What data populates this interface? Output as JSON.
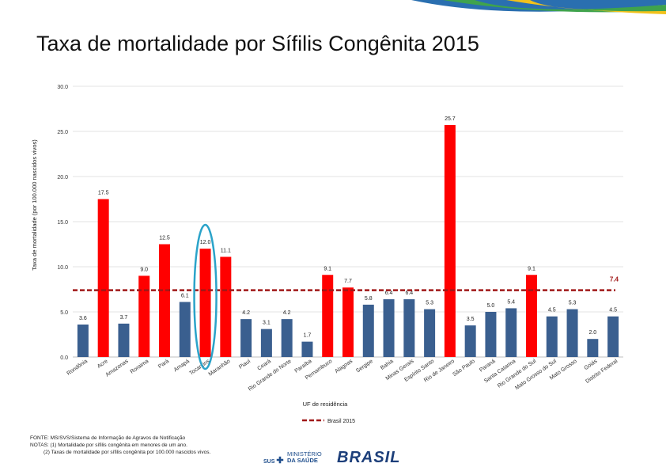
{
  "title": "Taxa de mortalidade por Sífilis Congênita 2015",
  "chart_data": {
    "type": "bar",
    "title": "Taxa de mortalidade por Sífilis Congênita 2015",
    "ylabel": "Taxa de mortalidade (por 100.000 nascidos vivos)",
    "xlabel": "UF de residência",
    "ylim": [
      0,
      30
    ],
    "yticks": [
      "0.0",
      "5.0",
      "10.0",
      "15.0",
      "20.0",
      "25.0",
      "30.0"
    ],
    "categories": [
      "Rondônia",
      "Acre",
      "Amazonas",
      "Roraima",
      "Pará",
      "Amapá",
      "Tocantins",
      "Maranhão",
      "Piauí",
      "Ceará",
      "Rio Grande do Norte",
      "Paraíba",
      "Pernambuco",
      "Alagoas",
      "Sergipe",
      "Bahia",
      "Minas Gerais",
      "Espírito Santo",
      "Rio de Janeiro",
      "São Paulo",
      "Paraná",
      "Santa Catarina",
      "Rio Grande do Sul",
      "Mato Grosso do Sul",
      "Mato Grosso",
      "Goiás",
      "Distrito Federal"
    ],
    "values": [
      3.6,
      17.5,
      3.7,
      9.0,
      12.5,
      6.1,
      12.0,
      11.1,
      4.2,
      3.1,
      4.2,
      1.7,
      9.1,
      7.7,
      5.8,
      6.4,
      6.4,
      5.3,
      25.7,
      3.5,
      5.0,
      5.4,
      9.1,
      4.5,
      5.3,
      2.0,
      4.5
    ],
    "value_labels": [
      "3.6",
      "17.5",
      "3.7",
      "9.0",
      "12.5",
      "6.1",
      "12.0",
      "11.1",
      "4.2",
      "3.1",
      "4.2",
      "1.7",
      "9.1",
      "7.7",
      "5.8",
      "6.4",
      "6.4",
      "5.3",
      "25.7",
      "3.5",
      "5.0",
      "5.4",
      "9.1",
      "4.5",
      "5.3",
      "2.0",
      "4.5"
    ],
    "colors": [
      "#3a5f8f",
      "#ff0000",
      "#3a5f8f",
      "#ff0000",
      "#ff0000",
      "#3a5f8f",
      "#ff0000",
      "#ff0000",
      "#3a5f8f",
      "#3a5f8f",
      "#3a5f8f",
      "#3a5f8f",
      "#ff0000",
      "#ff0000",
      "#3a5f8f",
      "#3a5f8f",
      "#3a5f8f",
      "#3a5f8f",
      "#ff0000",
      "#3a5f8f",
      "#3a5f8f",
      "#3a5f8f",
      "#ff0000",
      "#3a5f8f",
      "#3a5f8f",
      "#3a5f8f",
      "#3a5f8f"
    ],
    "reference_line": {
      "name": "Brasil 2015",
      "value": 7.4,
      "label": "7.4",
      "color": "#a01818"
    },
    "highlight": {
      "category": "Tocantins",
      "color": "#2ba3c9"
    },
    "legend": "bottom-center",
    "grid": true
  },
  "footer": {
    "source": "FONTE: MS/SVS/Sistema de Informação de Agravos de Notificação",
    "note1": "NOTAS: (1) Mortalidade por sífilis congênita em menores de um ano.",
    "note2": "(2) Taxas de mortalidade por sífilis congênita por 100.000 nascidos vivos."
  },
  "logos": {
    "sus": "SUS",
    "ministerio_line1": "MINISTÉRIO",
    "ministerio_line2": "DA SAÚDE",
    "brasil": "BRASIL"
  }
}
